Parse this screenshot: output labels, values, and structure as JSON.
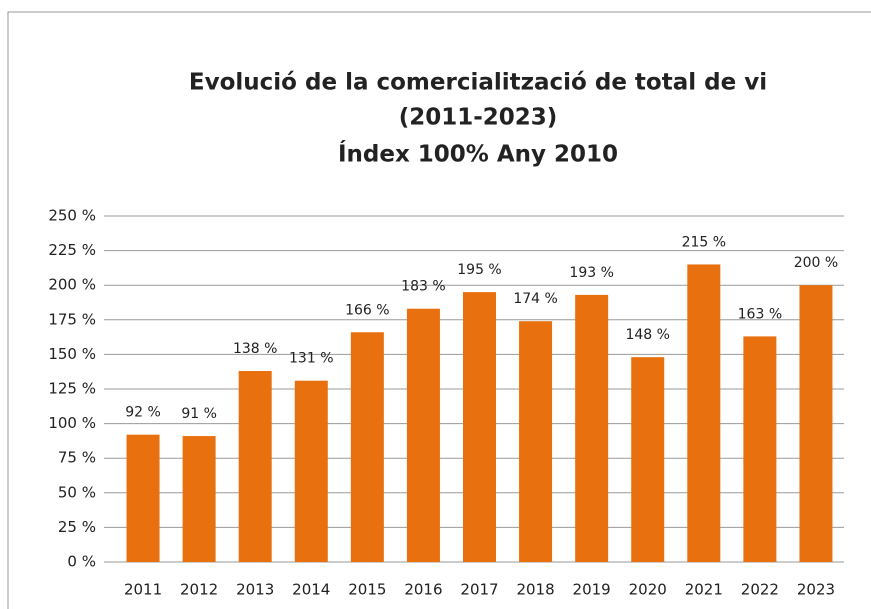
{
  "chart_data": {
    "type": "bar",
    "title": [
      "Evolució de la comercialització de total de vi",
      "(2011-2023)",
      "Índex 100% Any 2010"
    ],
    "categories": [
      "2011",
      "2012",
      "2013",
      "2014",
      "2015",
      "2016",
      "2017",
      "2018",
      "2019",
      "2020",
      "2021",
      "2022",
      "2023"
    ],
    "values": [
      92,
      91,
      138,
      131,
      166,
      183,
      195,
      174,
      193,
      148,
      215,
      163,
      200
    ],
    "value_labels": [
      "92 %",
      "91 %",
      "138 %",
      "131 %",
      "166 %",
      "183 %",
      "195 %",
      "174 %",
      "193 %",
      "148 %",
      "215 %",
      "163 %",
      "200 %"
    ],
    "color": "#e8700f",
    "ylim": [
      0,
      250
    ],
    "yticks": [
      {
        "value": 0,
        "label": "0 %"
      },
      {
        "value": 25,
        "label": "25 %"
      },
      {
        "value": 50,
        "label": "50 %"
      },
      {
        "value": 75,
        "label": "75 %"
      },
      {
        "value": 100,
        "label": "100 %"
      },
      {
        "value": 125,
        "label": "125 %"
      },
      {
        "value": 150,
        "label": "150 %"
      },
      {
        "value": 175,
        "label": "175 %"
      },
      {
        "value": 200,
        "label": "200 %"
      },
      {
        "value": 225,
        "label": "225 %"
      },
      {
        "value": 250,
        "label": "250 %"
      }
    ],
    "grid": true
  }
}
